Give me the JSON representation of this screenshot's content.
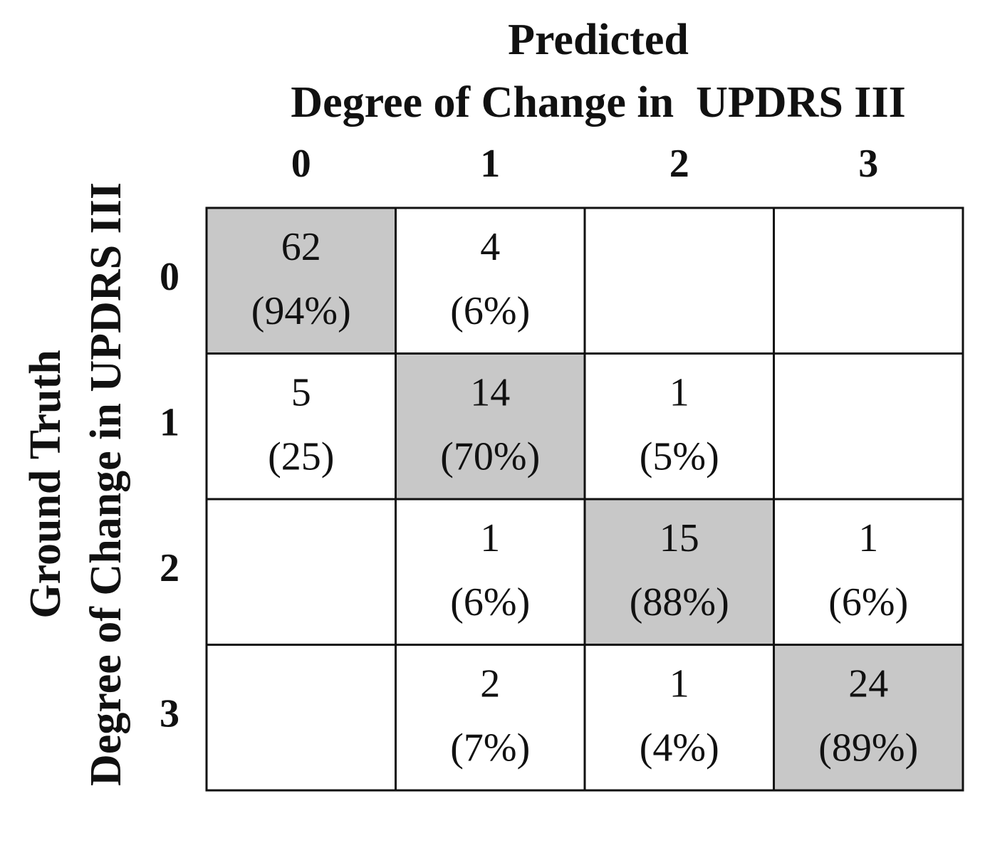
{
  "header": {
    "title": "Predicted",
    "subtitle": "Degree of Change in  UPDRS III"
  },
  "side": {
    "title": "Ground Truth",
    "subtitle": "Degree of Change in UPDRS III"
  },
  "table": {
    "diagonal_color": "#c8c8c8",
    "columns": [
      "0",
      "1",
      "2",
      "3"
    ],
    "rows": [
      {
        "label": "0",
        "cells": [
          {
            "count": 62,
            "share": "(94%)"
          },
          {
            "count": 4,
            "share": "(6%)"
          },
          null,
          null
        ]
      },
      {
        "label": "1",
        "cells": [
          {
            "count": 5,
            "share": "(25)"
          },
          {
            "count": 14,
            "share": "(70%)"
          },
          {
            "count": 1,
            "share": "(5%)"
          },
          null
        ]
      },
      {
        "label": "2",
        "cells": [
          null,
          {
            "count": 1,
            "share": "(6%)"
          },
          {
            "count": 15,
            "share": "(88%)"
          },
          {
            "count": 1,
            "share": "(6%)"
          }
        ]
      },
      {
        "label": "3",
        "cells": [
          null,
          {
            "count": 2,
            "share": "(7%)"
          },
          {
            "count": 1,
            "share": "(4%)"
          },
          {
            "count": 24,
            "share": "(89%)"
          }
        ]
      }
    ]
  }
}
